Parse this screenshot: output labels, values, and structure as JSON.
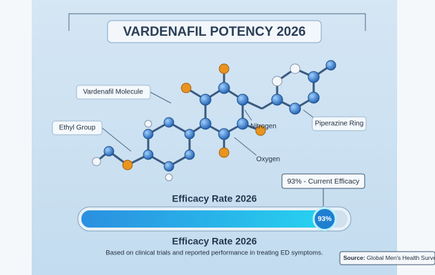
{
  "title": "VARDENAFIL POTENCY 2026",
  "labels": {
    "molecule": "Vardenafil Molecule",
    "ethyl": "Ethyl Group",
    "nitrogen": "Nitrogen",
    "piperazine": "Piperazine Ring",
    "oxygen": "Oxygen"
  },
  "callout": "93% - Current Efficacy",
  "progress": {
    "heading": "Efficacy Rate 2026",
    "value": 93,
    "value_label": "93%",
    "xlim": [
      0,
      100
    ],
    "subheading": "Efficacy Rate 2026"
  },
  "footnote": "Based on clinical trials and reported performance in treating ED symptoms.",
  "source": {
    "label": "Source:",
    "text": "Global Men's Health Survey"
  }
}
